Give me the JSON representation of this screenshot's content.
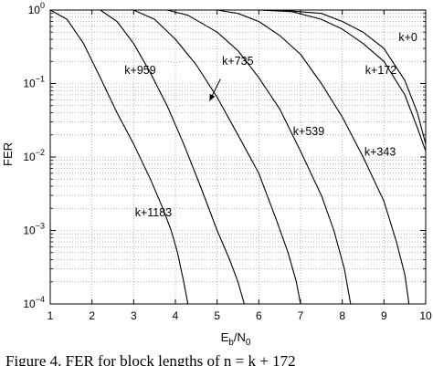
{
  "chart_data": {
    "type": "line",
    "xlabel": {
      "main": "E",
      "sub1": "b",
      "mid": "/N",
      "sub2": "0"
    },
    "ylabel": "FER",
    "xlim": [
      1,
      10
    ],
    "ylim_log10": [
      -4,
      0
    ],
    "y_scale": "log",
    "grid": true,
    "x_ticks": [
      "1",
      "2",
      "3",
      "4",
      "5",
      "6",
      "7",
      "8",
      "9",
      "10"
    ],
    "y_tick_base": "10",
    "y_tick_exponents": [
      "0",
      "−1",
      "−2",
      "−3",
      "−4"
    ],
    "series": [
      {
        "name": "k+1183",
        "points": [
          [
            1.0,
            1.0
          ],
          [
            1.4,
            0.75
          ],
          [
            1.8,
            0.35
          ],
          [
            2.2,
            0.12
          ],
          [
            2.6,
            0.04
          ],
          [
            3.0,
            0.015
          ],
          [
            3.4,
            0.005
          ],
          [
            3.7,
            0.002
          ],
          [
            3.9,
            0.001
          ],
          [
            4.05,
            0.0005
          ],
          [
            4.2,
            0.0002
          ],
          [
            4.3,
            0.0001
          ]
        ]
      },
      {
        "name": "k+959",
        "points": [
          [
            1.0,
            1.0
          ],
          [
            2.2,
            1.0
          ],
          [
            2.6,
            0.7
          ],
          [
            3.0,
            0.35
          ],
          [
            3.4,
            0.14
          ],
          [
            3.8,
            0.05
          ],
          [
            4.2,
            0.015
          ],
          [
            4.6,
            0.004
          ],
          [
            5.0,
            0.001
          ],
          [
            5.3,
            0.0004
          ],
          [
            5.5,
            0.0002
          ],
          [
            5.65,
            0.0001
          ]
        ]
      },
      {
        "name": "k+735",
        "points": [
          [
            1.0,
            1.0
          ],
          [
            3.0,
            1.0
          ],
          [
            3.5,
            0.75
          ],
          [
            4.0,
            0.4
          ],
          [
            4.5,
            0.18
          ],
          [
            5.0,
            0.065
          ],
          [
            5.5,
            0.02
          ],
          [
            6.0,
            0.006
          ],
          [
            6.4,
            0.0015
          ],
          [
            6.7,
            0.0005
          ],
          [
            6.9,
            0.0002
          ],
          [
            7.0,
            0.0001
          ]
        ]
      },
      {
        "name": "k+539",
        "points": [
          [
            1.0,
            1.0
          ],
          [
            3.8,
            1.0
          ],
          [
            4.3,
            0.85
          ],
          [
            5.0,
            0.5
          ],
          [
            5.5,
            0.28
          ],
          [
            6.0,
            0.12
          ],
          [
            6.5,
            0.045
          ],
          [
            7.0,
            0.012
          ],
          [
            7.5,
            0.003
          ],
          [
            7.8,
            0.001
          ],
          [
            8.05,
            0.0003
          ],
          [
            8.2,
            0.0001
          ]
        ]
      },
      {
        "name": "k+343",
        "points": [
          [
            1.0,
            1.0
          ],
          [
            5.0,
            1.0
          ],
          [
            5.5,
            0.9
          ],
          [
            6.0,
            0.7
          ],
          [
            6.5,
            0.45
          ],
          [
            7.0,
            0.25
          ],
          [
            7.5,
            0.1
          ],
          [
            8.0,
            0.035
          ],
          [
            8.5,
            0.01
          ],
          [
            9.0,
            0.0025
          ],
          [
            9.3,
            0.0007
          ],
          [
            9.5,
            0.00025
          ],
          [
            9.6,
            0.0001
          ]
        ]
      },
      {
        "name": "k+172",
        "points": [
          [
            1.0,
            1.0
          ],
          [
            6.0,
            1.0
          ],
          [
            6.8,
            0.95
          ],
          [
            7.5,
            0.75
          ],
          [
            8.0,
            0.55
          ],
          [
            8.5,
            0.35
          ],
          [
            9.0,
            0.2
          ],
          [
            9.5,
            0.07
          ],
          [
            9.8,
            0.025
          ],
          [
            10.0,
            0.012
          ]
        ]
      },
      {
        "name": "k+0",
        "points": [
          [
            1.0,
            1.0
          ],
          [
            6.5,
            1.0
          ],
          [
            7.5,
            0.9
          ],
          [
            8.0,
            0.7
          ],
          [
            8.5,
            0.5
          ],
          [
            9.0,
            0.3
          ],
          [
            9.5,
            0.11
          ],
          [
            9.8,
            0.04
          ],
          [
            10.0,
            0.015
          ]
        ]
      }
    ],
    "curve_labels": [
      {
        "text": "k+1183",
        "x": 3.03,
        "y": 0.00155
      },
      {
        "text": "k+959",
        "x": 2.78,
        "y": 0.135
      },
      {
        "text": "k+735",
        "x": 5.12,
        "y": 0.18
      },
      {
        "text": "k+539",
        "x": 6.82,
        "y": 0.02
      },
      {
        "text": "k+343",
        "x": 8.53,
        "y": 0.0105
      },
      {
        "text": "k+172",
        "x": 8.55,
        "y": 0.135
      },
      {
        "text": "k+0",
        "x": 9.35,
        "y": 0.38
      }
    ],
    "arrow": {
      "from": [
        5.08,
        0.115
      ],
      "to": [
        4.82,
        0.058
      ]
    }
  },
  "caption": "Figure 4. FER for block lengths of n = k + 172"
}
